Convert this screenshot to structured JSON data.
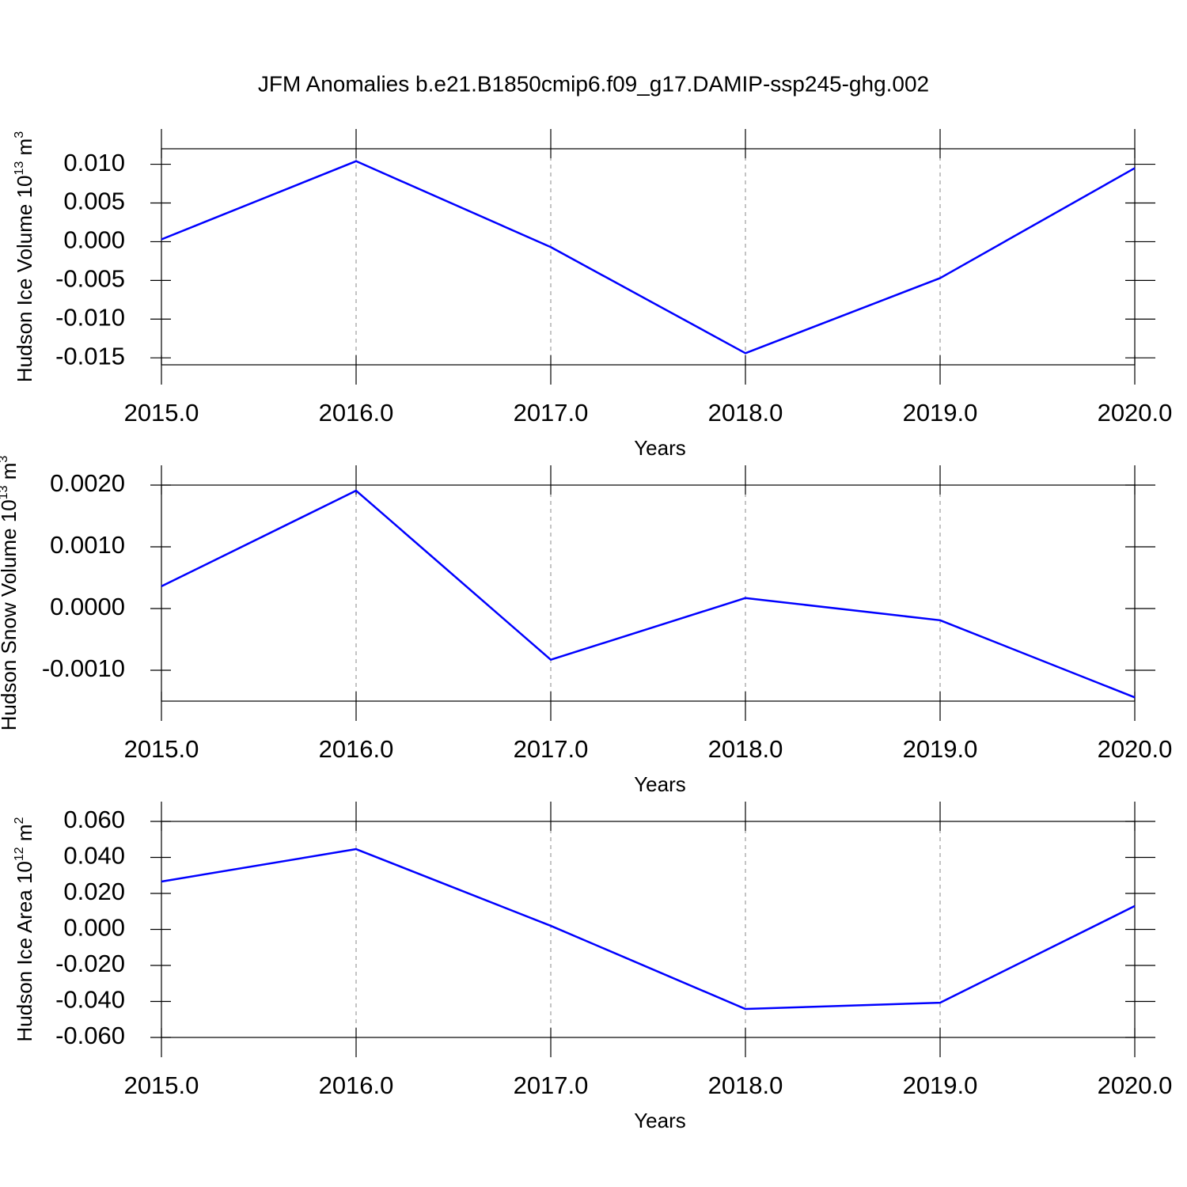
{
  "title": "JFM Anomalies b.e21.B1850cmip6.f09_g17.DAMIP-ssp245-ghg.002",
  "chart_data": [
    {
      "type": "line",
      "ylabel": [
        "Hudson Ice Volume 10",
        "13",
        " m",
        "3"
      ],
      "xlabel": "Years",
      "x": [
        2015,
        2016,
        2017,
        2018,
        2019,
        2020
      ],
      "series": [
        {
          "color": "#0000ff",
          "values": [
            0.0003,
            0.0104,
            -0.0007,
            -0.0144,
            -0.0047,
            0.0095
          ]
        }
      ],
      "xlim": [
        2015,
        2020
      ],
      "xticks": [
        {
          "value": 2015,
          "label": "2015.0"
        },
        {
          "value": 2016,
          "label": "2016.0"
        },
        {
          "value": 2017,
          "label": "2017.0"
        },
        {
          "value": 2018,
          "label": "2018.0"
        },
        {
          "value": 2019,
          "label": "2019.0"
        },
        {
          "value": 2020,
          "label": "2020.0"
        }
      ],
      "ylim": [
        -0.0159,
        0.012
      ],
      "yticks": [
        {
          "value": 0.01,
          "label": "0.010"
        },
        {
          "value": 0.005,
          "label": "0.005"
        },
        {
          "value": 0,
          "label": "0.000"
        },
        {
          "value": -0.005,
          "label": "-0.005"
        },
        {
          "value": -0.01,
          "label": "-0.010"
        },
        {
          "value": -0.015,
          "label": "-0.015"
        }
      ],
      "grid": "x"
    },
    {
      "type": "line",
      "ylabel": [
        "Hudson Snow Volume 10",
        "13",
        " m",
        "3"
      ],
      "xlabel": "Years",
      "x": [
        2015,
        2016,
        2017,
        2018,
        2019,
        2020
      ],
      "series": [
        {
          "color": "#0000ff",
          "values": [
            0.00036,
            0.00191,
            -0.00083,
            0.00017,
            -0.00019,
            -0.00144
          ]
        }
      ],
      "xlim": [
        2015,
        2020
      ],
      "xticks": [
        {
          "value": 2015,
          "label": "2015.0"
        },
        {
          "value": 2016,
          "label": "2016.0"
        },
        {
          "value": 2017,
          "label": "2017.0"
        },
        {
          "value": 2018,
          "label": "2018.0"
        },
        {
          "value": 2019,
          "label": "2019.0"
        },
        {
          "value": 2020,
          "label": "2020.0"
        }
      ],
      "ylim": [
        -0.0015,
        0.002
      ],
      "yticks": [
        {
          "value": 0.002,
          "label": "0.0020"
        },
        {
          "value": 0.001,
          "label": "0.0010"
        },
        {
          "value": 0,
          "label": "0.0000"
        },
        {
          "value": -0.001,
          "label": "-0.0010"
        }
      ],
      "grid": "x"
    },
    {
      "type": "line",
      "ylabel": [
        "Hudson Ice Area 10",
        "12",
        " m",
        "2"
      ],
      "xlabel": "Years",
      "x": [
        2015,
        2016,
        2017,
        2018,
        2019,
        2020
      ],
      "series": [
        {
          "color": "#0000ff",
          "values": [
            0.0266,
            0.0446,
            0.002,
            -0.0442,
            -0.0407,
            0.013
          ]
        }
      ],
      "xlim": [
        2015,
        2020
      ],
      "xticks": [
        {
          "value": 2015,
          "label": "2015.0"
        },
        {
          "value": 2016,
          "label": "2016.0"
        },
        {
          "value": 2017,
          "label": "2017.0"
        },
        {
          "value": 2018,
          "label": "2018.0"
        },
        {
          "value": 2019,
          "label": "2019.0"
        },
        {
          "value": 2020,
          "label": "2020.0"
        }
      ],
      "ylim": [
        -0.06,
        0.06
      ],
      "yticks": [
        {
          "value": 0.06,
          "label": "0.060"
        },
        {
          "value": 0.04,
          "label": "0.040"
        },
        {
          "value": 0.02,
          "label": "0.020"
        },
        {
          "value": 0,
          "label": "0.000"
        },
        {
          "value": -0.02,
          "label": "-0.020"
        },
        {
          "value": -0.04,
          "label": "-0.040"
        },
        {
          "value": -0.06,
          "label": "-0.060"
        }
      ],
      "grid": "x"
    }
  ]
}
